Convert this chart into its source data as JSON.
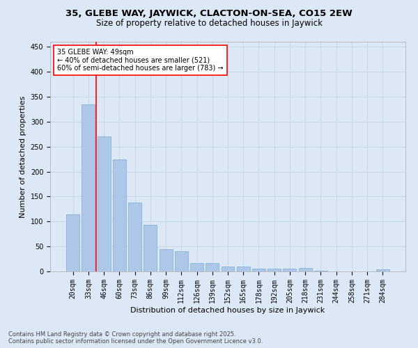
{
  "title1": "35, GLEBE WAY, JAYWICK, CLACTON-ON-SEA, CO15 2EW",
  "title2": "Size of property relative to detached houses in Jaywick",
  "xlabel": "Distribution of detached houses by size in Jaywick",
  "ylabel": "Number of detached properties",
  "categories": [
    "20sqm",
    "33sqm",
    "46sqm",
    "60sqm",
    "73sqm",
    "86sqm",
    "99sqm",
    "112sqm",
    "126sqm",
    "139sqm",
    "152sqm",
    "165sqm",
    "178sqm",
    "192sqm",
    "205sqm",
    "218sqm",
    "231sqm",
    "244sqm",
    "258sqm",
    "271sqm",
    "284sqm"
  ],
  "values": [
    115,
    335,
    270,
    224,
    138,
    93,
    45,
    40,
    17,
    17,
    10,
    10,
    6,
    6,
    6,
    7,
    2,
    0,
    0,
    0,
    4
  ],
  "bar_color": "#aec6e8",
  "bar_edge_color": "#7aacd4",
  "grid_color": "#c8d8e8",
  "background_color": "#dce8f5",
  "vline_x": 1.5,
  "vline_color": "red",
  "annotation_text": "35 GLEBE WAY: 49sqm\n← 40% of detached houses are smaller (521)\n60% of semi-detached houses are larger (783) →",
  "annotation_box_color": "white",
  "annotation_box_edge": "red",
  "ylim": [
    0,
    460
  ],
  "yticks": [
    0,
    50,
    100,
    150,
    200,
    250,
    300,
    350,
    400,
    450
  ],
  "footer": "Contains HM Land Registry data © Crown copyright and database right 2025.\nContains public sector information licensed under the Open Government Licence v3.0.",
  "title_fontsize": 9.5,
  "subtitle_fontsize": 8.5,
  "axis_label_fontsize": 8,
  "tick_fontsize": 7,
  "footer_fontsize": 6,
  "annotation_fontsize": 7
}
